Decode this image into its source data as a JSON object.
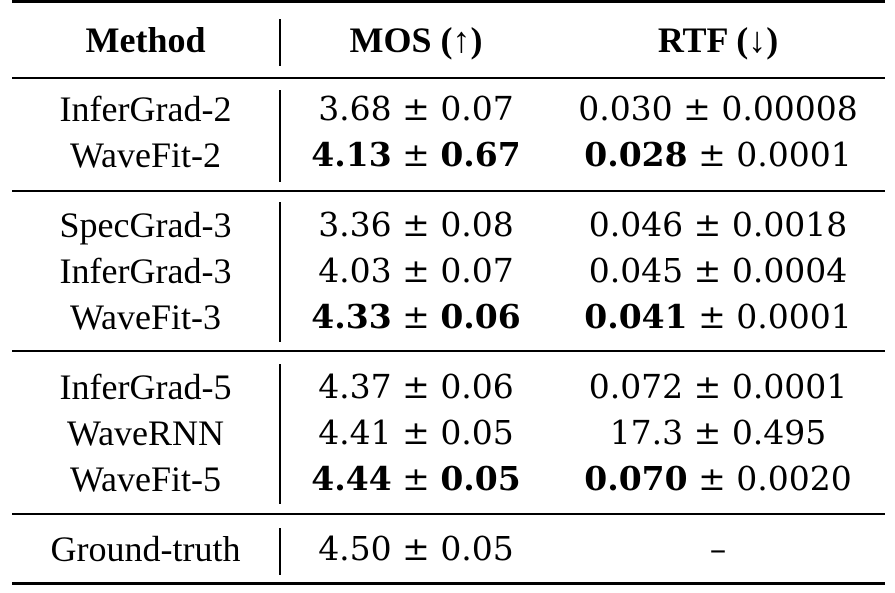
{
  "table": {
    "headers": {
      "method": "Method",
      "mos": "MOS (↑)",
      "rtf": "RTF (↓)"
    },
    "rows": [
      {
        "method": "InferGrad-2",
        "mos": {
          "mean": "3.68",
          "pm": "±",
          "std": "0.07",
          "bold": false
        },
        "rtf": {
          "mean": "0.030",
          "pm": "±",
          "std": "0.00008",
          "mean_bold": false
        }
      },
      {
        "method": "WaveFit-2",
        "mos": {
          "mean": "4.13",
          "pm": "±",
          "std": "0.67",
          "bold": true
        },
        "rtf": {
          "mean": "0.028",
          "pm": "±",
          "std": "0.0001",
          "mean_bold": true
        }
      },
      {
        "method": "SpecGrad-3",
        "mos": {
          "mean": "3.36",
          "pm": "±",
          "std": "0.08",
          "bold": false
        },
        "rtf": {
          "mean": "0.046",
          "pm": "±",
          "std": "0.0018",
          "mean_bold": false
        }
      },
      {
        "method": "InferGrad-3",
        "mos": {
          "mean": "4.03",
          "pm": "±",
          "std": "0.07",
          "bold": false
        },
        "rtf": {
          "mean": "0.045",
          "pm": "±",
          "std": "0.0004",
          "mean_bold": false
        }
      },
      {
        "method": "WaveFit-3",
        "mos": {
          "mean": "4.33",
          "pm": "±",
          "std": "0.06",
          "bold": true
        },
        "rtf": {
          "mean": "0.041",
          "pm": "±",
          "std": "0.0001",
          "mean_bold": true
        }
      },
      {
        "method": "InferGrad-5",
        "mos": {
          "mean": "4.37",
          "pm": "±",
          "std": "0.06",
          "bold": false
        },
        "rtf": {
          "mean": "0.072",
          "pm": "±",
          "std": "0.0001",
          "mean_bold": false
        }
      },
      {
        "method": "WaveRNN",
        "mos": {
          "mean": "4.41",
          "pm": "±",
          "std": "0.05",
          "bold": false
        },
        "rtf": {
          "mean": "17.3",
          "pm": "±",
          "std": "0.495",
          "mean_bold": false
        }
      },
      {
        "method": "WaveFit-5",
        "mos": {
          "mean": "4.44",
          "pm": "±",
          "std": "0.05",
          "bold": true
        },
        "rtf": {
          "mean": "0.070",
          "pm": "±",
          "std": "0.0020",
          "mean_bold": true
        }
      },
      {
        "method": "Ground-truth",
        "mos": {
          "mean": "4.50",
          "pm": "±",
          "std": "0.05",
          "bold": false
        },
        "rtf": {
          "mean": "–",
          "pm": "",
          "std": "",
          "mean_bold": false
        }
      }
    ]
  }
}
